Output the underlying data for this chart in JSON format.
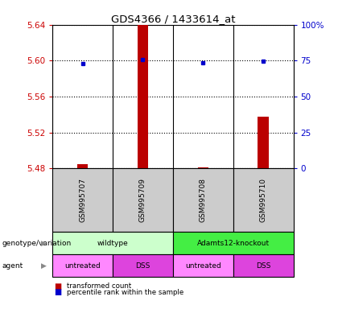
{
  "title": "GDS4366 / 1433614_at",
  "samples": [
    "GSM995707",
    "GSM995709",
    "GSM995708",
    "GSM995710"
  ],
  "bar_values": [
    5.4845,
    5.64,
    5.4815,
    5.538
  ],
  "dot_values": [
    5.597,
    5.601,
    5.598,
    5.599
  ],
  "ylim_left": [
    5.48,
    5.64
  ],
  "yticks_left": [
    5.48,
    5.52,
    5.56,
    5.6,
    5.64
  ],
  "ylim_right": [
    0,
    100
  ],
  "yticks_right": [
    0,
    25,
    50,
    75,
    100
  ],
  "bar_color": "#bb0000",
  "dot_color": "#0000cc",
  "bar_bottom": 5.48,
  "bar_width": 0.18,
  "genotype_groups": [
    {
      "label": "wildtype",
      "cols": [
        0,
        1
      ],
      "color": "#ccffcc"
    },
    {
      "label": "Adamts12-knockout",
      "cols": [
        2,
        3
      ],
      "color": "#44ee44"
    }
  ],
  "agent_groups": [
    {
      "label": "untreated",
      "cols": [
        0
      ],
      "color": "#ff88ff"
    },
    {
      "label": "DSS",
      "cols": [
        1
      ],
      "color": "#dd44dd"
    },
    {
      "label": "untreated",
      "cols": [
        2
      ],
      "color": "#ff88ff"
    },
    {
      "label": "DSS",
      "cols": [
        3
      ],
      "color": "#dd44dd"
    }
  ],
  "sample_box_color": "#cccccc",
  "legend_items": [
    {
      "color": "#bb0000",
      "label": "transformed count"
    },
    {
      "color": "#0000cc",
      "label": "percentile rank within the sample"
    }
  ],
  "left_label_color": "#cc0000",
  "right_label_color": "#0000cc"
}
